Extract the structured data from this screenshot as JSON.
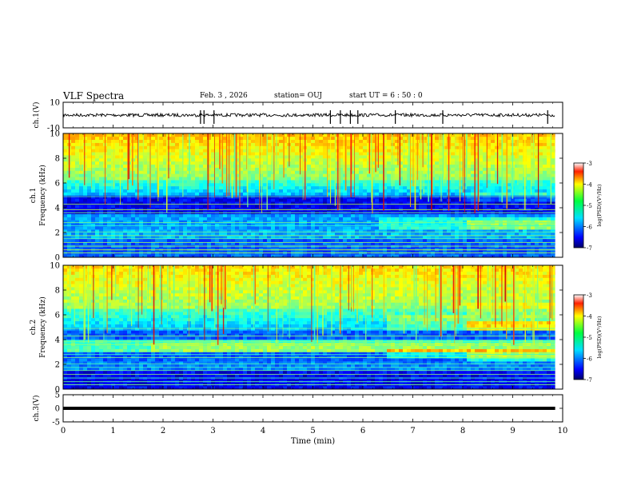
{
  "header": {
    "title": "VLF Spectra",
    "date": "Feb. 3  , 2026",
    "station": "station= OUJ",
    "start": "start  UT  =   6  : 50 : 0"
  },
  "chart_data": [
    {
      "type": "line",
      "panel": "ch1-waveform",
      "ylabel": "ch.1(V)",
      "ylim": [
        -10,
        10
      ],
      "yticks": [
        10,
        -10
      ],
      "baseline": 0,
      "spike_times_min": [
        2.75,
        2.82,
        3.02,
        5.35,
        5.55,
        5.75,
        5.9,
        6.65,
        7.6,
        9.7
      ]
    },
    {
      "type": "heatmap",
      "panel": "ch1-spectrogram",
      "ylabel": "ch.1 Frequency (kHz)",
      "ylim": [
        0,
        10
      ],
      "yticks": [
        0,
        2,
        4,
        6,
        8,
        10
      ],
      "colorbar": {
        "label": "log(PSD)(V²/Hz)",
        "range": [
          -7,
          -3
        ],
        "ticks": [
          -3,
          -4,
          -5,
          -6,
          -7
        ]
      }
    },
    {
      "type": "heatmap",
      "panel": "ch2-spectrogram",
      "ylabel": "ch.2 Frequency (kHz)",
      "ylim": [
        0,
        10
      ],
      "yticks": [
        0,
        2,
        4,
        6,
        8,
        10
      ],
      "colorbar": {
        "label": "log(PSD)(V²/Hz)",
        "range": [
          -7,
          -3
        ],
        "ticks": [
          -3,
          -4,
          -5,
          -6,
          -7
        ]
      }
    },
    {
      "type": "line",
      "panel": "ch3-waveform",
      "ylabel": "ch.3(V)",
      "ylim": [
        -5,
        5
      ],
      "yticks": [
        5,
        0,
        -5
      ],
      "baseline": 0
    }
  ],
  "xaxis": {
    "label": "Time  (min)",
    "range": [
      0,
      10
    ],
    "ticks": [
      0,
      1,
      2,
      3,
      4,
      5,
      6,
      7,
      8,
      9,
      10
    ],
    "data_end_min": 9.85
  }
}
